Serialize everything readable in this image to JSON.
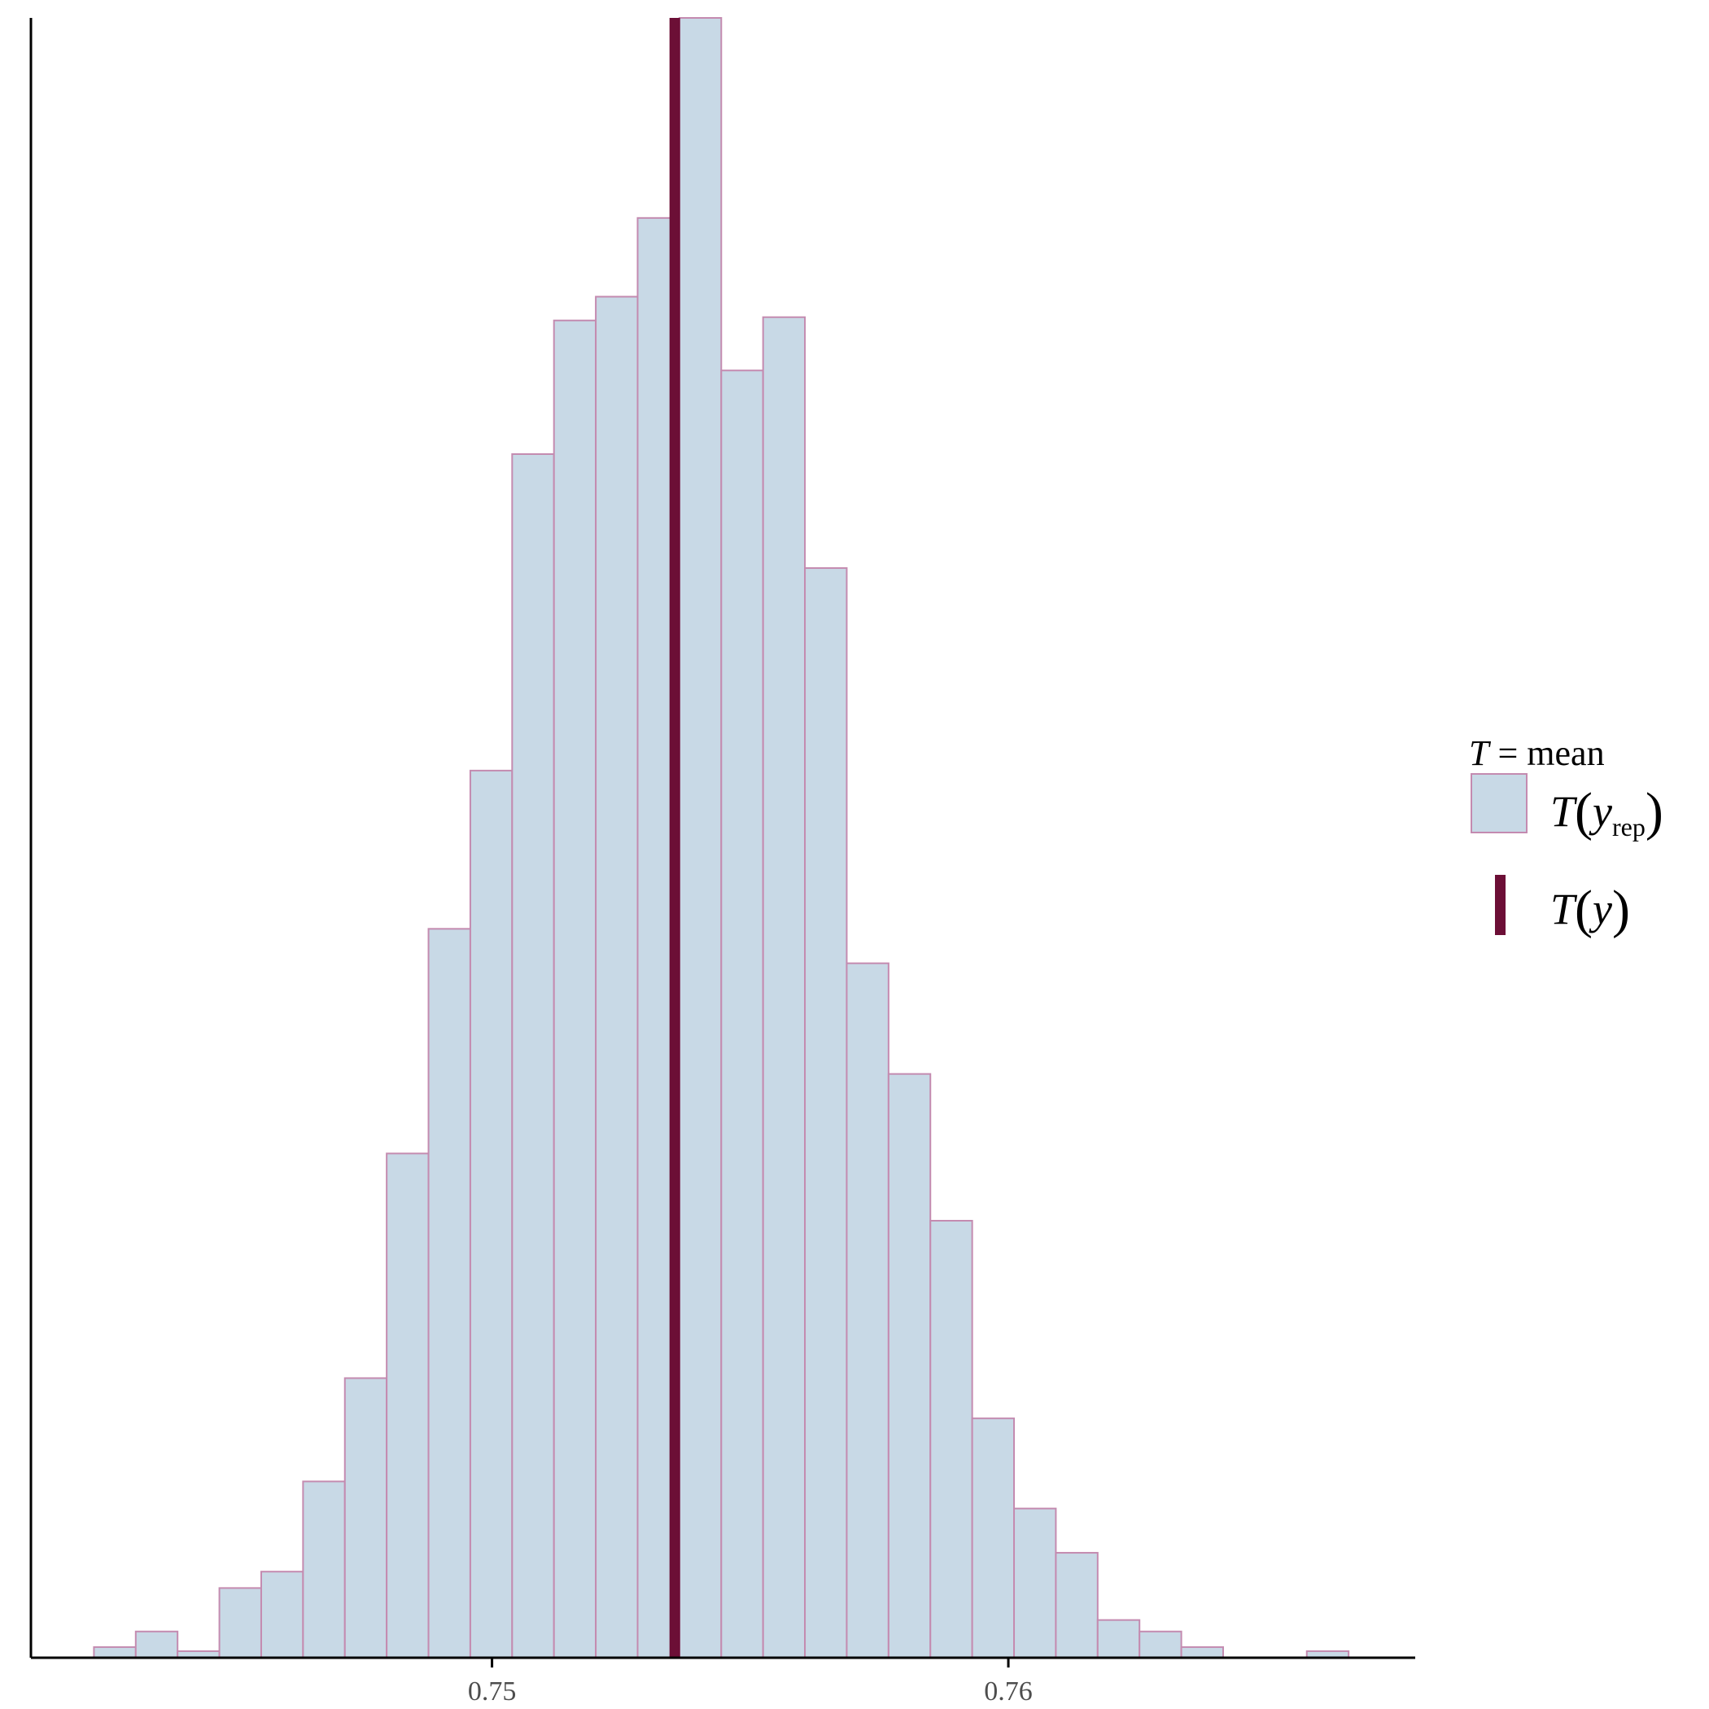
{
  "chart_data": {
    "type": "histogram",
    "title": "",
    "xlabel": "",
    "ylabel": "",
    "x_ticks": [
      0.75,
      0.76
    ],
    "x_tick_labels": [
      "0.75",
      "0.76"
    ],
    "xlim": [
      0.74107,
      0.76788
    ],
    "ylim": [
      0,
      200
    ],
    "bins": [
      {
        "x0": 0.74229,
        "x1": 0.7431,
        "count": 1.3
      },
      {
        "x0": 0.7431,
        "x1": 0.74391,
        "count": 3.2
      },
      {
        "x0": 0.74391,
        "x1": 0.74472,
        "count": 0.8
      },
      {
        "x0": 0.74472,
        "x1": 0.74553,
        "count": 8.5
      },
      {
        "x0": 0.74553,
        "x1": 0.74634,
        "count": 10.5
      },
      {
        "x0": 0.74634,
        "x1": 0.74715,
        "count": 21.5
      },
      {
        "x0": 0.74715,
        "x1": 0.74796,
        "count": 34.1
      },
      {
        "x0": 0.74796,
        "x1": 0.74877,
        "count": 61.5
      },
      {
        "x0": 0.74877,
        "x1": 0.74958,
        "count": 88.9
      },
      {
        "x0": 0.74958,
        "x1": 0.75039,
        "count": 108.2
      },
      {
        "x0": 0.75039,
        "x1": 0.7512,
        "count": 146.8
      },
      {
        "x0": 0.7512,
        "x1": 0.75201,
        "count": 163.1
      },
      {
        "x0": 0.75201,
        "x1": 0.75282,
        "count": 166.0
      },
      {
        "x0": 0.75282,
        "x1": 0.75363,
        "count": 175.6
      },
      {
        "x0": 0.75363,
        "x1": 0.75444,
        "count": 200.0
      },
      {
        "x0": 0.75444,
        "x1": 0.75525,
        "count": 157.0
      },
      {
        "x0": 0.75525,
        "x1": 0.75606,
        "count": 163.5
      },
      {
        "x0": 0.75606,
        "x1": 0.75687,
        "count": 132.9
      },
      {
        "x0": 0.75687,
        "x1": 0.75768,
        "count": 84.7
      },
      {
        "x0": 0.75768,
        "x1": 0.75849,
        "count": 71.2
      },
      {
        "x0": 0.75849,
        "x1": 0.7593,
        "count": 53.3
      },
      {
        "x0": 0.7593,
        "x1": 0.76011,
        "count": 29.2
      },
      {
        "x0": 0.76011,
        "x1": 0.76092,
        "count": 18.2
      },
      {
        "x0": 0.76092,
        "x1": 0.76173,
        "count": 12.8
      },
      {
        "x0": 0.76173,
        "x1": 0.76254,
        "count": 4.6
      },
      {
        "x0": 0.76254,
        "x1": 0.76335,
        "count": 3.2
      },
      {
        "x0": 0.76335,
        "x1": 0.76416,
        "count": 1.3
      },
      {
        "x0": 0.76416,
        "x1": 0.76497,
        "count": 0
      },
      {
        "x0": 0.76497,
        "x1": 0.76578,
        "count": 0
      },
      {
        "x0": 0.76578,
        "x1": 0.76659,
        "count": 0.8
      }
    ],
    "observed_value": 0.75354,
    "grid": false,
    "legend_position": "right",
    "colors": {
      "bar_fill": "#c8d9e6",
      "bar_outline": "#c48bb0",
      "observed_line": "#6c0f36",
      "axis": "#000000",
      "tick_text": "#4d4d4d"
    }
  },
  "legend": {
    "title_var": "T",
    "title_rest": " = mean",
    "rep_T": "T",
    "rep_y": "y",
    "rep_sub": "rep",
    "obs_T": "T",
    "obs_y": "y"
  }
}
